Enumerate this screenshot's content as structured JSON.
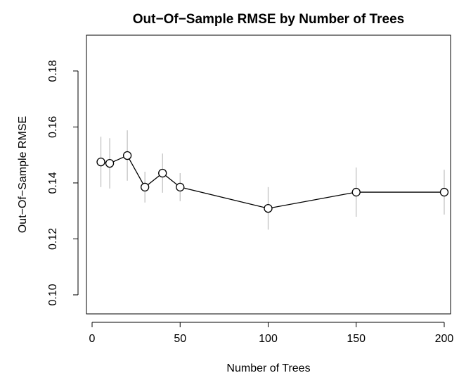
{
  "chart_data": {
    "type": "line",
    "title": "Out−Of−Sample RMSE by Number of Trees",
    "x_label": "Number of Trees",
    "y_label": "Out−Of−Sample RMSE",
    "x": [
      5,
      10,
      20,
      30,
      40,
      50,
      100,
      150,
      200
    ],
    "values": [
      0.1475,
      0.147,
      0.1498,
      0.1385,
      0.1435,
      0.1385,
      0.1309,
      0.1367,
      0.1367
    ],
    "errors": [
      0.009,
      0.009,
      0.009,
      0.0055,
      0.007,
      0.005,
      0.0076,
      0.0088,
      0.008
    ],
    "color": "#000000",
    "error_color": "#bebebe",
    "xlim": [
      -3.2,
      203.6
    ],
    "ylim": [
      0.0932,
      0.1928
    ],
    "xticks": [
      0,
      50,
      100,
      150,
      200
    ],
    "yticks": [
      {
        "value": 0.1,
        "label": "0.10"
      },
      0.12,
      0.14,
      0.16,
      0.18
    ]
  }
}
